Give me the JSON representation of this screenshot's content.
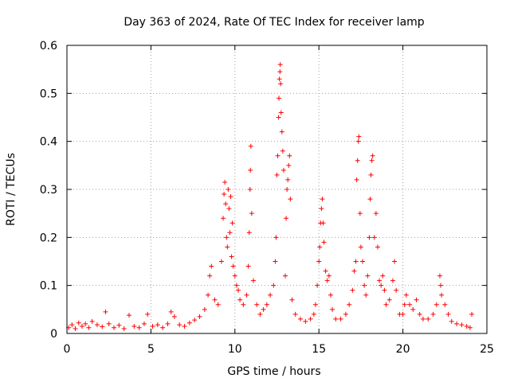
{
  "chart_data": {
    "type": "scatter",
    "title": "Day 363 of 2024, Rate Of TEC Index for receiver lamp",
    "xlabel": "GPS time / hours",
    "ylabel": "ROTI / TECUs",
    "xlim": [
      0,
      25
    ],
    "ylim": [
      0,
      0.6
    ],
    "xticks": [
      0,
      5,
      10,
      15,
      20,
      25
    ],
    "xtick_labels": [
      "0",
      "5",
      "10",
      "15",
      "20",
      "25"
    ],
    "yticks": [
      0,
      0.1,
      0.2,
      0.3,
      0.4,
      0.5,
      0.6
    ],
    "ytick_labels": [
      "0",
      "0.1",
      "0.2",
      "0.3",
      "0.4",
      "0.5",
      "0.6"
    ],
    "grid": true,
    "marker": "+",
    "color": "#ff0000",
    "series": [
      {
        "name": "ROTI",
        "points": [
          [
            0.1,
            0.012
          ],
          [
            0.3,
            0.018
          ],
          [
            0.5,
            0.01
          ],
          [
            0.7,
            0.022
          ],
          [
            0.9,
            0.015
          ],
          [
            1.1,
            0.02
          ],
          [
            1.3,
            0.012
          ],
          [
            1.5,
            0.025
          ],
          [
            1.8,
            0.018
          ],
          [
            2.1,
            0.014
          ],
          [
            2.3,
            0.045
          ],
          [
            2.5,
            0.02
          ],
          [
            2.8,
            0.012
          ],
          [
            3.1,
            0.017
          ],
          [
            3.4,
            0.01
          ],
          [
            3.7,
            0.038
          ],
          [
            4.0,
            0.015
          ],
          [
            4.3,
            0.012
          ],
          [
            4.6,
            0.02
          ],
          [
            4.8,
            0.04
          ],
          [
            5.1,
            0.015
          ],
          [
            5.4,
            0.018
          ],
          [
            5.7,
            0.012
          ],
          [
            6.0,
            0.02
          ],
          [
            6.2,
            0.045
          ],
          [
            6.4,
            0.035
          ],
          [
            6.7,
            0.018
          ],
          [
            7.0,
            0.015
          ],
          [
            7.3,
            0.022
          ],
          [
            7.6,
            0.028
          ],
          [
            7.9,
            0.035
          ],
          [
            8.2,
            0.05
          ],
          [
            8.4,
            0.08
          ],
          [
            8.5,
            0.12
          ],
          [
            8.6,
            0.14
          ],
          [
            8.8,
            0.07
          ],
          [
            9.0,
            0.06
          ],
          [
            9.2,
            0.15
          ],
          [
            9.3,
            0.24
          ],
          [
            9.35,
            0.29
          ],
          [
            9.4,
            0.315
          ],
          [
            9.45,
            0.27
          ],
          [
            9.5,
            0.2
          ],
          [
            9.55,
            0.18
          ],
          [
            9.6,
            0.3
          ],
          [
            9.65,
            0.26
          ],
          [
            9.7,
            0.21
          ],
          [
            9.75,
            0.285
          ],
          [
            9.8,
            0.16
          ],
          [
            9.85,
            0.23
          ],
          [
            9.9,
            0.14
          ],
          [
            10.0,
            0.12
          ],
          [
            10.1,
            0.1
          ],
          [
            10.2,
            0.09
          ],
          [
            10.3,
            0.07
          ],
          [
            10.5,
            0.06
          ],
          [
            10.7,
            0.08
          ],
          [
            10.8,
            0.14
          ],
          [
            10.85,
            0.21
          ],
          [
            10.9,
            0.3
          ],
          [
            10.92,
            0.34
          ],
          [
            10.95,
            0.39
          ],
          [
            11.0,
            0.25
          ],
          [
            11.1,
            0.11
          ],
          [
            11.3,
            0.06
          ],
          [
            11.5,
            0.04
          ],
          [
            11.7,
            0.05
          ],
          [
            11.9,
            0.06
          ],
          [
            12.1,
            0.08
          ],
          [
            12.3,
            0.1
          ],
          [
            12.4,
            0.15
          ],
          [
            12.45,
            0.2
          ],
          [
            12.5,
            0.33
          ],
          [
            12.55,
            0.37
          ],
          [
            12.6,
            0.45
          ],
          [
            12.62,
            0.49
          ],
          [
            12.65,
            0.53
          ],
          [
            12.68,
            0.545
          ],
          [
            12.7,
            0.56
          ],
          [
            12.72,
            0.52
          ],
          [
            12.75,
            0.46
          ],
          [
            12.8,
            0.42
          ],
          [
            12.85,
            0.38
          ],
          [
            12.9,
            0.34
          ],
          [
            13.0,
            0.12
          ],
          [
            13.05,
            0.24
          ],
          [
            13.1,
            0.3
          ],
          [
            13.15,
            0.32
          ],
          [
            13.2,
            0.35
          ],
          [
            13.25,
            0.37
          ],
          [
            13.3,
            0.28
          ],
          [
            13.4,
            0.07
          ],
          [
            13.6,
            0.04
          ],
          [
            13.9,
            0.03
          ],
          [
            14.2,
            0.025
          ],
          [
            14.5,
            0.03
          ],
          [
            14.7,
            0.04
          ],
          [
            14.8,
            0.06
          ],
          [
            14.9,
            0.1
          ],
          [
            15.0,
            0.15
          ],
          [
            15.05,
            0.18
          ],
          [
            15.1,
            0.23
          ],
          [
            15.15,
            0.26
          ],
          [
            15.2,
            0.28
          ],
          [
            15.25,
            0.23
          ],
          [
            15.3,
            0.19
          ],
          [
            15.4,
            0.13
          ],
          [
            15.5,
            0.11
          ],
          [
            15.6,
            0.12
          ],
          [
            15.7,
            0.08
          ],
          [
            15.8,
            0.05
          ],
          [
            16.0,
            0.03
          ],
          [
            16.3,
            0.03
          ],
          [
            16.6,
            0.04
          ],
          [
            16.8,
            0.06
          ],
          [
            17.0,
            0.09
          ],
          [
            17.1,
            0.13
          ],
          [
            17.2,
            0.15
          ],
          [
            17.25,
            0.32
          ],
          [
            17.3,
            0.36
          ],
          [
            17.35,
            0.4
          ],
          [
            17.38,
            0.41
          ],
          [
            17.45,
            0.25
          ],
          [
            17.5,
            0.18
          ],
          [
            17.6,
            0.15
          ],
          [
            17.7,
            0.1
          ],
          [
            17.8,
            0.08
          ],
          [
            17.9,
            0.12
          ],
          [
            18.0,
            0.2
          ],
          [
            18.05,
            0.28
          ],
          [
            18.1,
            0.33
          ],
          [
            18.15,
            0.36
          ],
          [
            18.2,
            0.37
          ],
          [
            18.3,
            0.2
          ],
          [
            18.4,
            0.25
          ],
          [
            18.5,
            0.18
          ],
          [
            18.6,
            0.11
          ],
          [
            18.7,
            0.1
          ],
          [
            18.8,
            0.12
          ],
          [
            18.9,
            0.09
          ],
          [
            19.0,
            0.06
          ],
          [
            19.2,
            0.07
          ],
          [
            19.4,
            0.11
          ],
          [
            19.5,
            0.15
          ],
          [
            19.6,
            0.09
          ],
          [
            19.8,
            0.04
          ],
          [
            20.0,
            0.04
          ],
          [
            20.1,
            0.06
          ],
          [
            20.2,
            0.08
          ],
          [
            20.4,
            0.06
          ],
          [
            20.6,
            0.05
          ],
          [
            20.8,
            0.07
          ],
          [
            21.0,
            0.04
          ],
          [
            21.2,
            0.03
          ],
          [
            21.5,
            0.03
          ],
          [
            21.8,
            0.04
          ],
          [
            22.0,
            0.06
          ],
          [
            22.2,
            0.12
          ],
          [
            22.25,
            0.1
          ],
          [
            22.3,
            0.08
          ],
          [
            22.5,
            0.06
          ],
          [
            22.7,
            0.04
          ],
          [
            22.9,
            0.025
          ],
          [
            23.2,
            0.02
          ],
          [
            23.5,
            0.018
          ],
          [
            23.8,
            0.015
          ],
          [
            24.0,
            0.012
          ],
          [
            24.1,
            0.04
          ]
        ]
      }
    ]
  }
}
